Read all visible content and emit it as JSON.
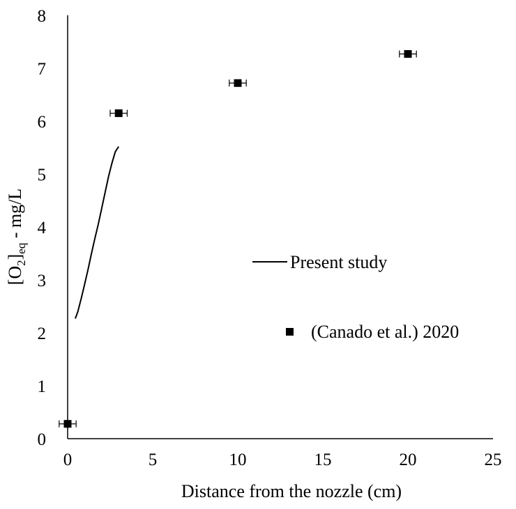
{
  "chart_data": {
    "type": "scatter",
    "title": "",
    "xlabel": "Distance from the nozzle (cm)",
    "ylabel": {
      "base": "[O",
      "sub1": "2",
      "mid": "]",
      "sub2": "eq",
      "tail": " - mg/L"
    },
    "xlim": [
      0,
      25
    ],
    "ylim": [
      0,
      8
    ],
    "xticks": [
      "0",
      "5",
      "10",
      "15",
      "20",
      "25"
    ],
    "yticks": [
      "0",
      "1",
      "2",
      "3",
      "4",
      "5",
      "6",
      "7",
      "8"
    ],
    "grid": false,
    "legend_position": "right",
    "series": [
      {
        "name": "Present study",
        "kind": "line",
        "color": "#000000",
        "x": [
          0.45,
          0.6,
          0.8,
          1.0,
          1.2,
          1.4,
          1.6,
          1.8,
          2.0,
          2.2,
          2.4,
          2.6,
          2.8,
          3.0
        ],
        "y": [
          2.27,
          2.4,
          2.65,
          2.92,
          3.2,
          3.5,
          3.78,
          4.05,
          4.35,
          4.65,
          4.95,
          5.2,
          5.42,
          5.52
        ]
      },
      {
        "name": "(Canado et al.) 2020",
        "kind": "scatter",
        "marker": "square",
        "color": "#000000",
        "x": [
          0.0,
          3.0,
          10.0,
          20.0
        ],
        "y": [
          0.28,
          6.15,
          6.72,
          7.27
        ],
        "x_error": [
          0.5,
          0.5,
          0.5,
          0.5
        ]
      }
    ]
  }
}
